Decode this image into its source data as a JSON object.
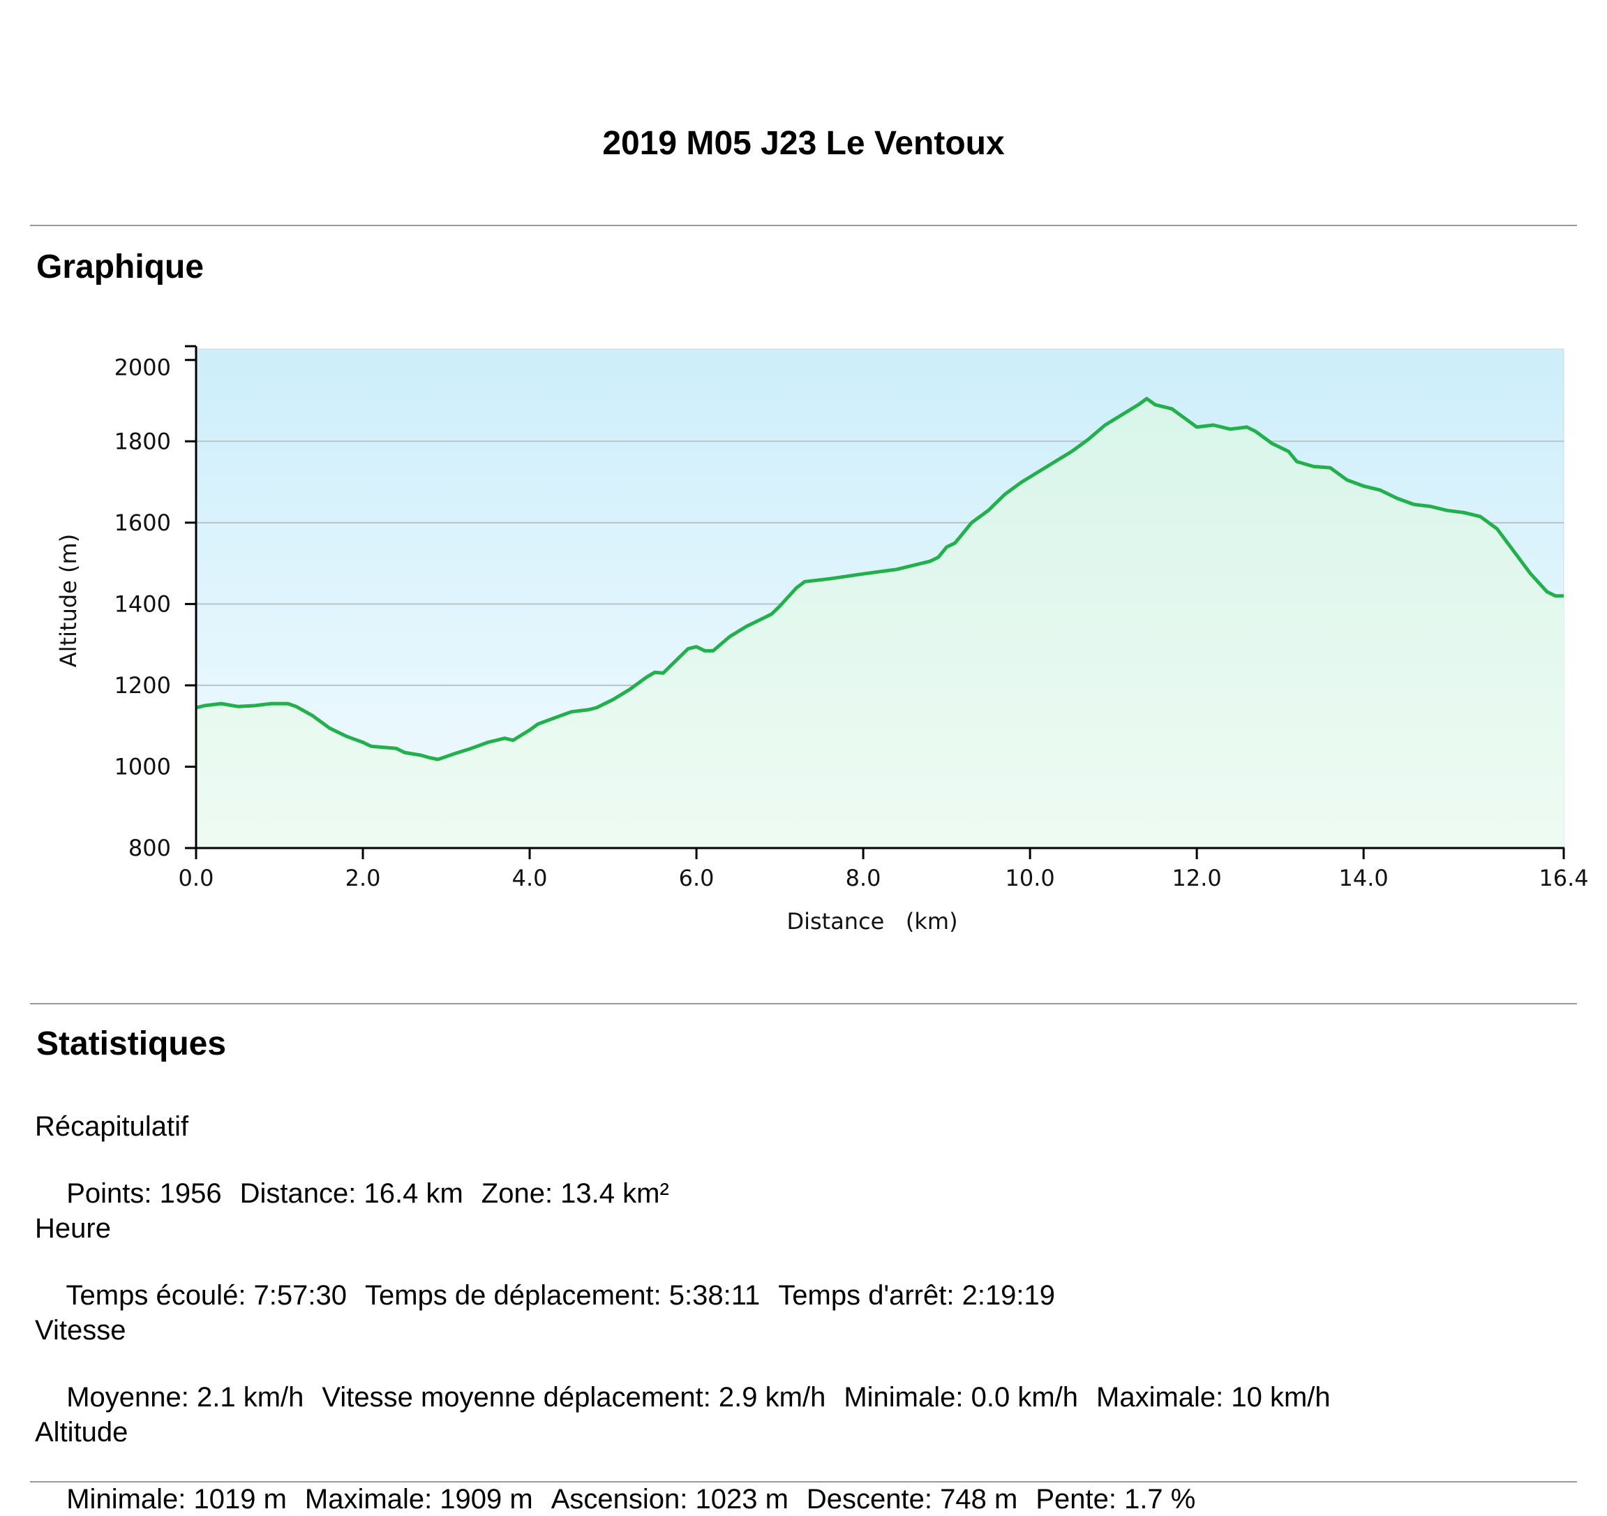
{
  "page": {
    "title": "2019 M05 J23 Le Ventoux",
    "graph_heading": "Graphique",
    "stats_heading": "Statistiques"
  },
  "colors": {
    "line": "#22b04b",
    "sky_top": "#cdeefa",
    "sky_bottom": "#f2fbff",
    "fill_top": "#d9f5ea",
    "fill_bottom": "#eefbf3",
    "grid": "#b9c4c9",
    "rule": "#9a9a9a"
  },
  "chart_data": {
    "type": "area",
    "title": "",
    "xlabel": "Distance   (km)",
    "ylabel": "Altitude (m)",
    "xlim": [
      0.0,
      16.4
    ],
    "ylim": [
      800,
      2000
    ],
    "x_ticks": [
      "0.0",
      "2.0",
      "4.0",
      "6.0",
      "8.0",
      "10.0",
      "12.0",
      "14.0",
      "16.4"
    ],
    "y_ticks": [
      "2000",
      "1800",
      "1600",
      "1400",
      "1200",
      "1000",
      "800"
    ],
    "grid": true,
    "legend": "none",
    "series": [
      {
        "x": [
          0.0,
          0.1,
          0.3,
          0.5,
          0.7,
          0.9,
          1.1,
          1.2,
          1.4,
          1.6,
          1.8,
          2.0,
          2.1,
          2.4,
          2.5,
          2.7,
          2.8,
          2.9,
          3.1,
          3.3,
          3.5,
          3.7,
          3.8,
          4.0,
          4.1,
          4.3,
          4.5,
          4.7,
          4.8,
          5.0,
          5.2,
          5.4,
          5.5,
          5.6,
          5.8,
          5.9,
          6.0,
          6.1,
          6.2,
          6.4,
          6.6,
          6.8,
          6.9,
          7.0,
          7.2,
          7.3,
          7.6,
          8.0,
          8.4,
          8.8,
          8.9,
          9.0,
          9.1,
          9.3,
          9.5,
          9.7,
          9.9,
          10.1,
          10.3,
          10.5,
          10.7,
          10.9,
          11.1,
          11.3,
          11.4,
          11.5,
          11.7,
          11.9,
          12.0,
          12.2,
          12.4,
          12.6,
          12.7,
          12.9,
          13.1,
          13.2,
          13.4,
          13.6,
          13.8,
          14.0,
          14.2,
          14.4,
          14.6,
          14.8,
          15.0,
          15.2,
          15.4,
          15.6,
          15.8,
          16.0,
          16.2,
          16.3,
          16.4
        ],
        "y": [
          1145,
          1150,
          1155,
          1148,
          1150,
          1155,
          1155,
          1148,
          1125,
          1095,
          1075,
          1060,
          1050,
          1045,
          1035,
          1028,
          1022,
          1018,
          1032,
          1045,
          1060,
          1070,
          1065,
          1090,
          1105,
          1120,
          1135,
          1140,
          1145,
          1165,
          1190,
          1220,
          1232,
          1230,
          1270,
          1290,
          1295,
          1285,
          1285,
          1320,
          1345,
          1365,
          1375,
          1395,
          1440,
          1455,
          1462,
          1474,
          1485,
          1505,
          1515,
          1540,
          1550,
          1600,
          1630,
          1670,
          1700,
          1725,
          1750,
          1775,
          1805,
          1840,
          1865,
          1890,
          1905,
          1890,
          1880,
          1850,
          1835,
          1840,
          1830,
          1835,
          1825,
          1795,
          1775,
          1750,
          1738,
          1735,
          1705,
          1690,
          1680,
          1660,
          1645,
          1640,
          1630,
          1625,
          1615,
          1585,
          1530,
          1475,
          1430,
          1420,
          1420
        ]
      }
    ]
  },
  "stats": {
    "summary": {
      "label": "Récapitulatif",
      "items": [
        "Points: 1956",
        "Distance: 16.4 km",
        "Zone: 13.4 km²"
      ]
    },
    "time": {
      "label": "Heure",
      "items": [
        "Temps écoulé: 7:57:30",
        "Temps de déplacement: 5:38:11",
        "Temps d'arrêt: 2:19:19"
      ]
    },
    "speed": {
      "label": "Vitesse",
      "items": [
        "Moyenne: 2.1 km/h",
        "Vitesse moyenne déplacement: 2.9 km/h",
        "Minimale: 0.0 km/h",
        "Maximale: 10 km/h"
      ]
    },
    "altitude": {
      "label": "Altitude",
      "items": [
        "Minimale: 1019 m",
        "Maximale: 1909 m",
        "Ascension: 1023 m",
        "Descente: 748 m",
        "Pente: 1.7 %"
      ]
    }
  }
}
